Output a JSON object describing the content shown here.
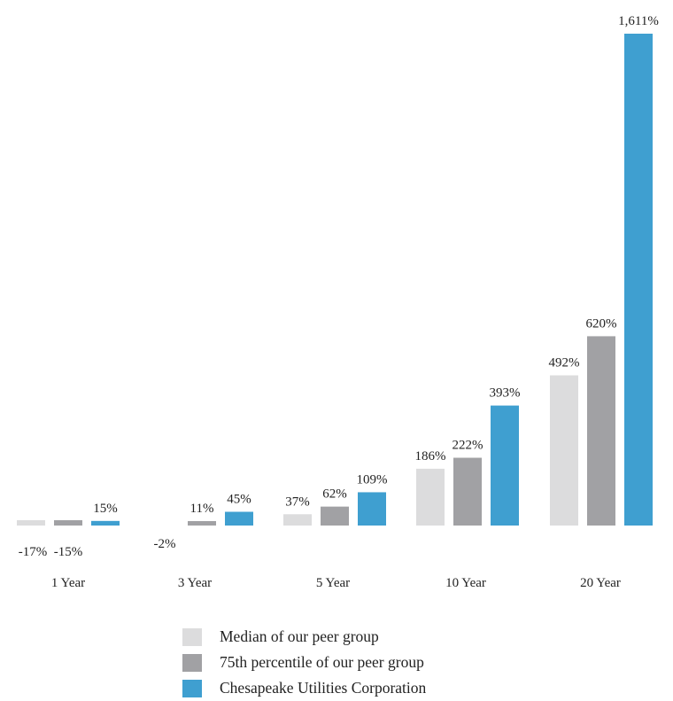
{
  "chart_data": {
    "type": "bar",
    "categories": [
      "1 Year",
      "3 Year",
      "5 Year",
      "10 Year",
      "20 Year"
    ],
    "series": [
      {
        "name": "Median of our peer group",
        "color": "#dcdcdd",
        "values": [
          -17,
          -2,
          37,
          186,
          492
        ],
        "labels": [
          "-17%",
          "-2%",
          "37%",
          "186%",
          "492%"
        ]
      },
      {
        "name": "75th percentile of our peer group",
        "color": "#a1a1a4",
        "values": [
          -15,
          11,
          62,
          222,
          620
        ],
        "labels": [
          "-15%",
          "11%",
          "62%",
          "222%",
          "620%"
        ]
      },
      {
        "name": "Chesapeake Utilities Corporation",
        "color": "#3f9fd0",
        "values": [
          15,
          45,
          109,
          393,
          1611
        ],
        "labels": [
          "15%",
          "45%",
          "109%",
          "393%",
          "1,611%"
        ]
      }
    ]
  }
}
